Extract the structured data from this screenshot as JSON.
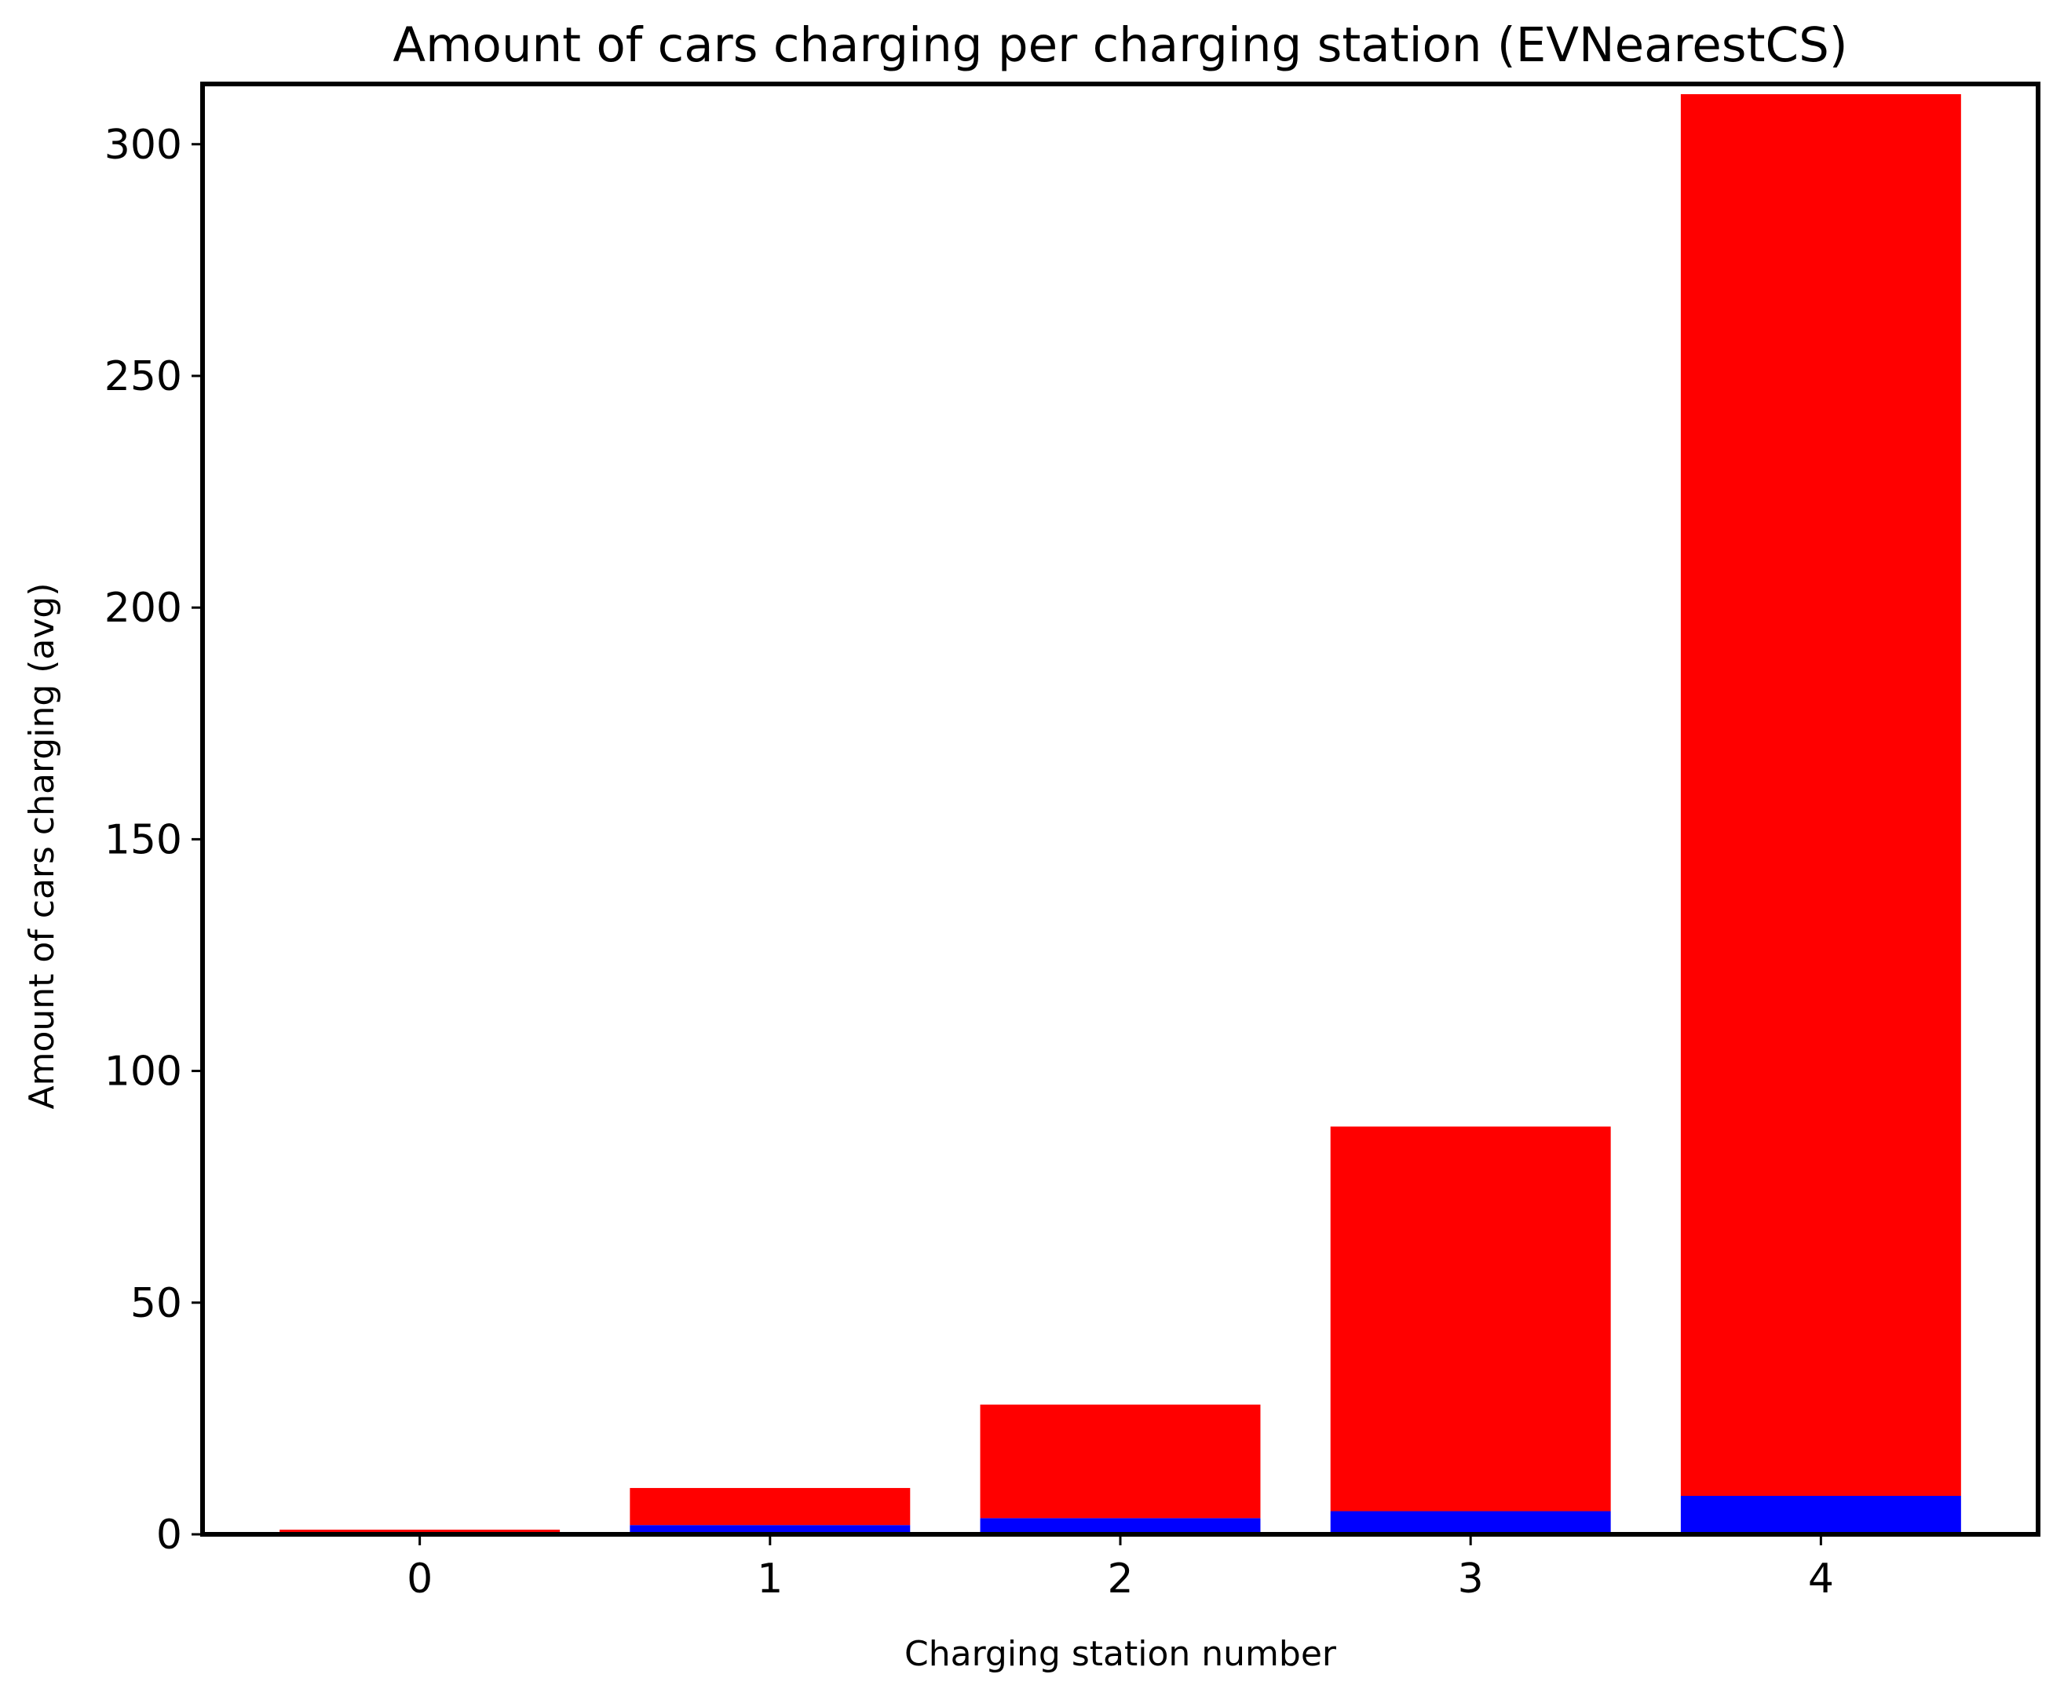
{
  "chart_data": {
    "type": "bar",
    "stacked": true,
    "title": "Amount of cars charging per charging station (EVNearestCS)",
    "xlabel": "Charging station number",
    "ylabel": "Amount of cars charging (avg)",
    "categories": [
      "0",
      "1",
      "2",
      "3",
      "4"
    ],
    "ylim": [
      0,
      313
    ],
    "yticks": [
      0,
      50,
      100,
      150,
      200,
      250,
      300
    ],
    "grid": false,
    "series": [
      {
        "color": "#0000ff",
        "values": [
          0.3,
          2,
          3.5,
          5,
          8.3
        ]
      },
      {
        "color": "#ff0000",
        "values": [
          0.7,
          8,
          24.5,
          83,
          302.5
        ]
      }
    ]
  }
}
